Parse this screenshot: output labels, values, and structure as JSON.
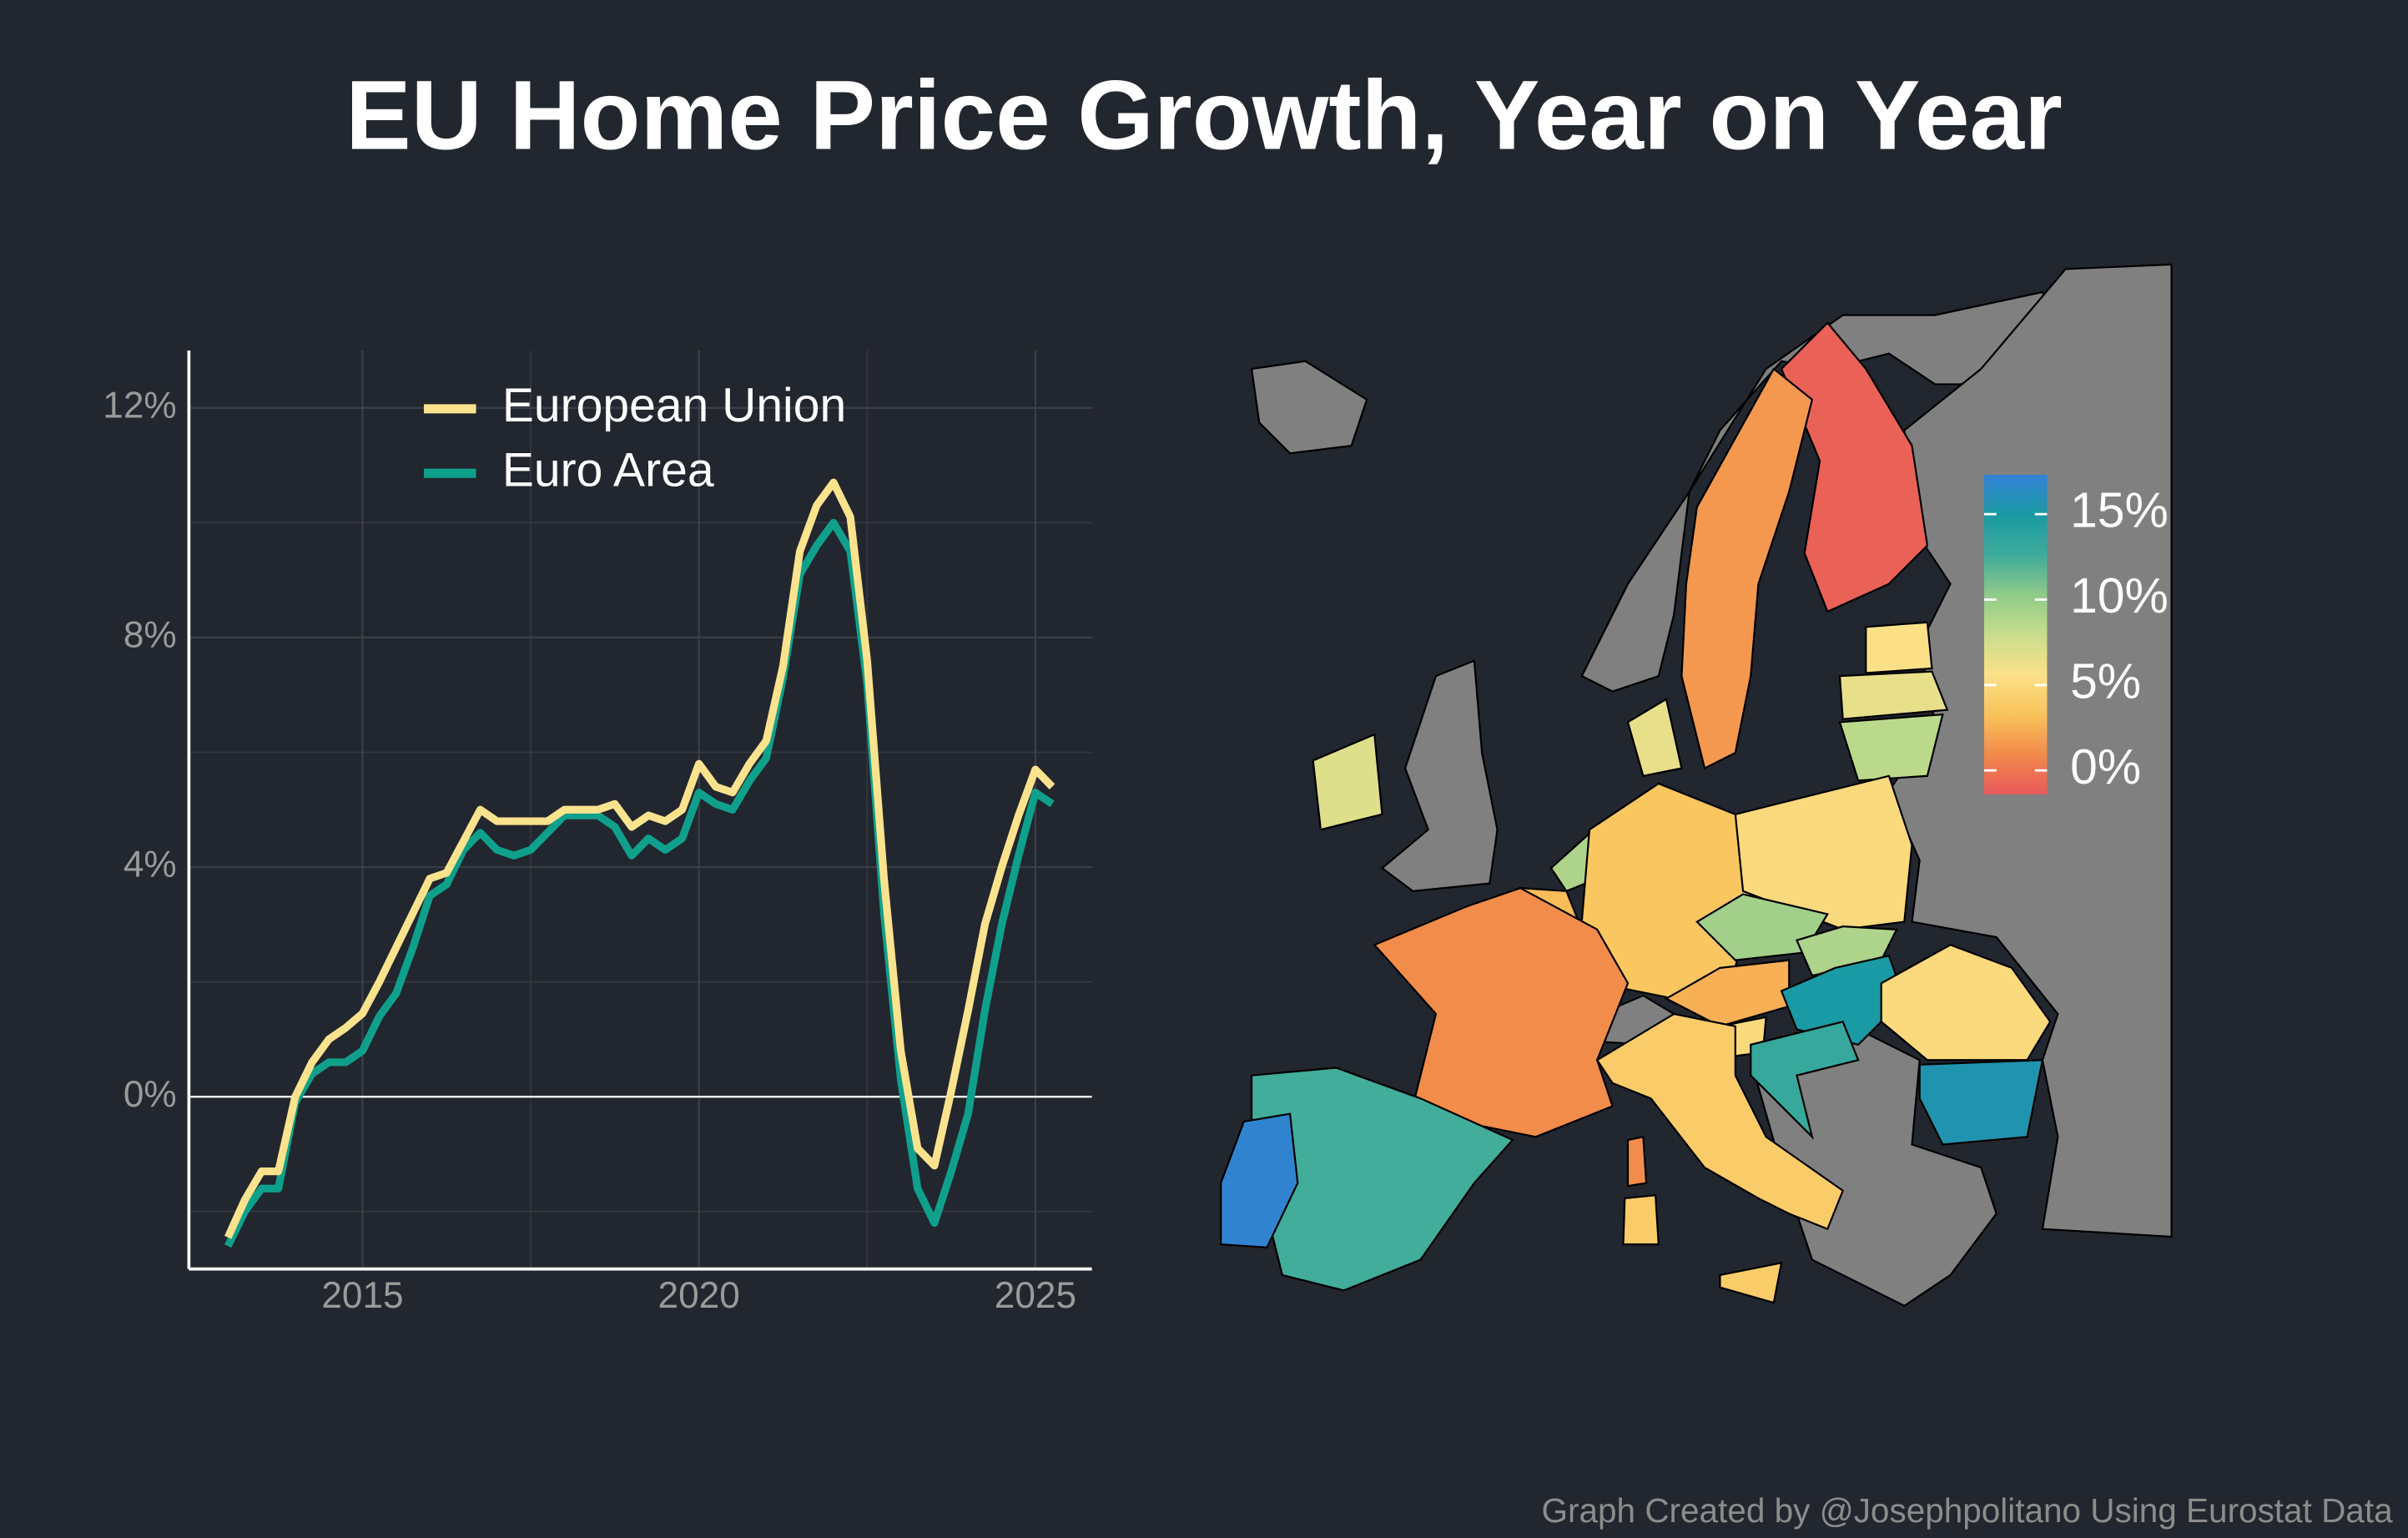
{
  "title": "EU Home Price Growth, Year on Year",
  "footer": "Graph Created by @Josephpolitano Using Eurostat Data",
  "chart_data": [
    {
      "type": "line",
      "x": [
        2013,
        2013.25,
        2013.5,
        2013.75,
        2014,
        2014.25,
        2014.5,
        2014.75,
        2015,
        2015.25,
        2015.5,
        2015.75,
        2016,
        2016.25,
        2016.5,
        2016.75,
        2017,
        2017.25,
        2017.5,
        2017.75,
        2018,
        2018.25,
        2018.5,
        2018.75,
        2019,
        2019.25,
        2019.5,
        2019.75,
        2020,
        2020.25,
        2020.5,
        2020.75,
        2021,
        2021.25,
        2021.5,
        2021.75,
        2022,
        2022.25,
        2022.5,
        2022.75,
        2023,
        2023.25,
        2023.5,
        2023.75,
        2024,
        2024.25,
        2024.5,
        2024.75,
        2025,
        2025.25
      ],
      "series": [
        {
          "name": "European Union",
          "color": "#fbe38e",
          "values": [
            -2.45,
            -1.8,
            -1.3,
            -1.3,
            0.0,
            0.6,
            1.0,
            1.2,
            1.45,
            2.0,
            2.6,
            3.2,
            3.8,
            3.9,
            4.45,
            5.0,
            4.8,
            4.8,
            4.8,
            4.8,
            5.0,
            5.0,
            5.0,
            5.1,
            4.7,
            4.9,
            4.8,
            5.0,
            5.8,
            5.4,
            5.3,
            5.8,
            6.2,
            7.5,
            9.5,
            10.3,
            10.7,
            10.1,
            7.6,
            3.8,
            0.8,
            -0.9,
            -1.2,
            0.1,
            1.5,
            3.0,
            4.0,
            4.9,
            5.7,
            5.4
          ]
        },
        {
          "name": "Euro Area",
          "color": "#0fa08c",
          "values": [
            -2.6,
            -2.0,
            -1.6,
            -1.6,
            -0.1,
            0.4,
            0.6,
            0.6,
            0.8,
            1.4,
            1.8,
            2.6,
            3.5,
            3.7,
            4.3,
            4.6,
            4.3,
            4.2,
            4.3,
            4.6,
            4.9,
            4.9,
            4.9,
            4.7,
            4.2,
            4.5,
            4.3,
            4.5,
            5.3,
            5.1,
            5.0,
            5.5,
            5.9,
            7.3,
            9.1,
            9.6,
            10.0,
            9.5,
            7.2,
            3.2,
            0.3,
            -1.6,
            -2.2,
            -1.3,
            -0.3,
            1.5,
            3.0,
            4.2,
            5.3,
            5.1
          ]
        }
      ],
      "xlim": [
        2012.42,
        2025.84
      ],
      "ylim": [
        -3,
        13
      ],
      "xticks": [
        2015,
        2020,
        2025
      ],
      "yticks": [
        {
          "value": 0,
          "label": "0%"
        },
        {
          "value": 4,
          "label": "4%"
        },
        {
          "value": 8,
          "label": "8%"
        },
        {
          "value": 12,
          "label": "12%"
        }
      ],
      "x_minor_grid": [
        2017.5,
        2022.5
      ],
      "y_minor_grid": [
        -2,
        2,
        6,
        10
      ],
      "hline": 0,
      "grid": true,
      "legend": "top-left"
    },
    {
      "type": "map",
      "values": [
        -1,
        1.5,
        5.5,
        6.5,
        8.5,
        6.5,
        7,
        9,
        3,
        3.5,
        5,
        9.5,
        9,
        2.5,
        15,
        5,
        13,
        1,
        12.5,
        17,
        4,
        5,
        15.5
      ],
      "clim": [
        -1.4,
        17.3
      ],
      "colorscale": [
        "#e8585a",
        "#f28a4b",
        "#f9c35a",
        "#fce18a",
        "#c8dd8c",
        "#8fca89",
        "#3dab9b",
        "#1a9aa3",
        "#3381d6"
      ],
      "cticks": [
        {
          "value": 0,
          "label": "0%"
        },
        {
          "value": 5,
          "label": "5%"
        },
        {
          "value": 10,
          "label": "10%"
        },
        {
          "value": 15,
          "label": "15%"
        }
      ],
      "missing_color": "#808080"
    }
  ]
}
